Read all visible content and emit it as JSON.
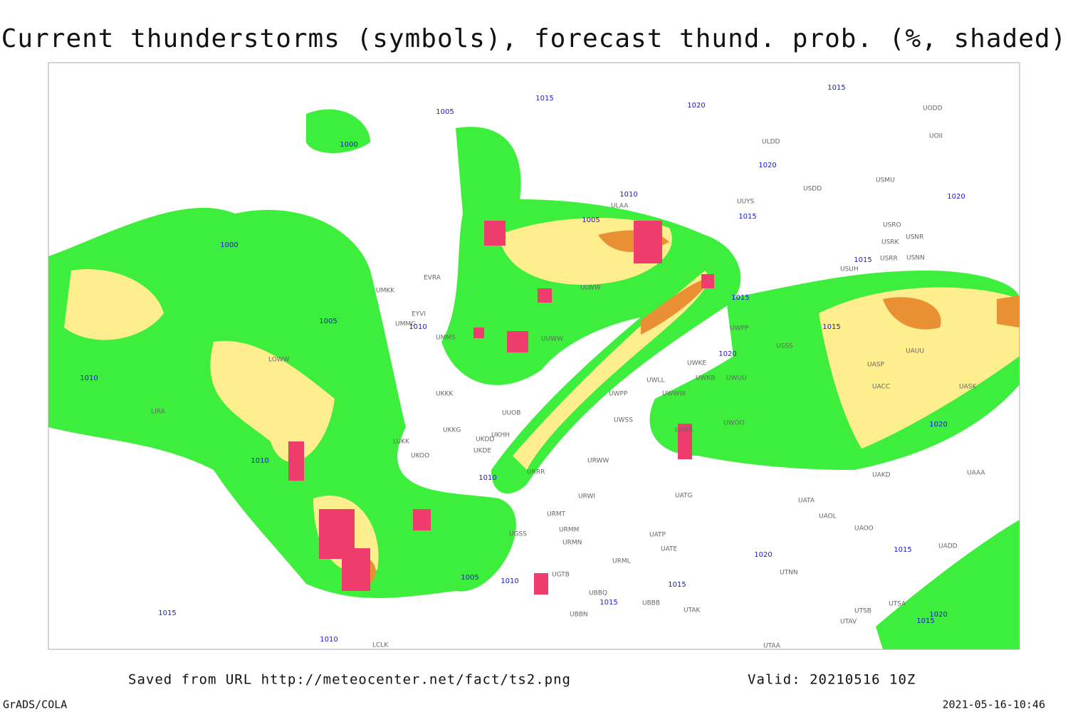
{
  "header": {
    "title": "Current thunderstorms (symbols), forecast thund. prob. (%, shaded)"
  },
  "footer": {
    "source": "Saved from URL http://meteocenter.net/fact/ts2.png",
    "valid": "Valid: 20210516 10Z",
    "software": "GrADS/COLA",
    "timestamp": "2021-05-16-10:46"
  },
  "isobar_labels": [
    "1015",
    "1005",
    "1020",
    "1015",
    "1000",
    "1020",
    "1010",
    "1015",
    "1005",
    "1020",
    "1000",
    "1015",
    "1005",
    "1010",
    "1015",
    "1015",
    "1020",
    "1010",
    "1020",
    "1010",
    "1010",
    "1005",
    "1010",
    "1015",
    "1015",
    "1020",
    "1015",
    "1015",
    "1010",
    "1020",
    "1015"
  ],
  "stations": [
    "ULDD",
    "UODD",
    "UOII",
    "USDD",
    "USMU",
    "UUYS",
    "ULAA",
    "USRO",
    "USRK",
    "USNR",
    "USRR",
    "USNN",
    "USUH",
    "ULWW",
    "UMKK",
    "EVRA",
    "EYVI",
    "UMMG",
    "UMMS",
    "UUWW",
    "UWPP",
    "USSS",
    "UWKE",
    "UWKB",
    "UWUU",
    "UWLL",
    "UWWW",
    "UWPP",
    "UKKK",
    "UUOB",
    "UWSS",
    "UKHH",
    "UKKG",
    "UKDD",
    "UKDE",
    "LUKK",
    "UKOO",
    "URWW",
    "URRR",
    "URWI",
    "URMT",
    "URMM",
    "URMN",
    "URML",
    "UGSS",
    "UATG",
    "UATA",
    "UAOL",
    "UAOO",
    "UATP",
    "UATE",
    "UADD",
    "UTNN",
    "UTAK",
    "UBBB",
    "UTSA",
    "UTSB",
    "UTAV",
    "UTAA",
    "UAKD",
    "UAAA",
    "UASP",
    "UACC",
    "UASK",
    "UAUU",
    "UARR",
    "UWOO",
    "LIRA",
    "LOWW",
    "LCLK",
    "UBBN",
    "UBBQ",
    "UGTB"
  ]
}
